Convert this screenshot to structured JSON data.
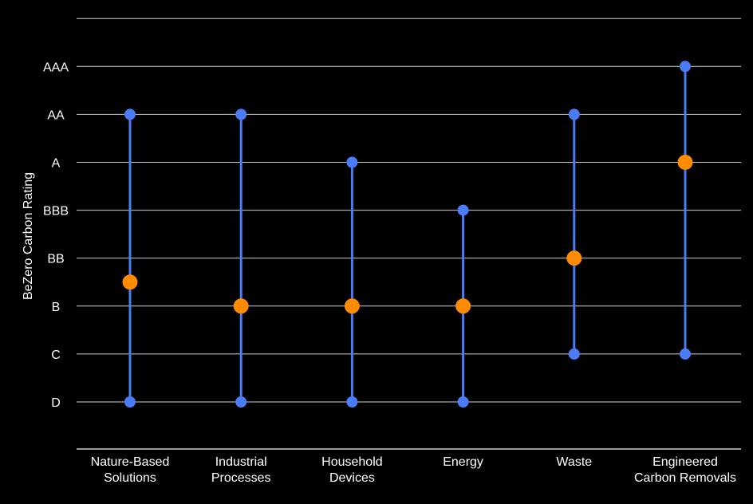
{
  "chart_data": {
    "type": "range-dot",
    "title": "",
    "xlabel": "",
    "ylabel": "BeZero Carbon Rating",
    "rating_levels": [
      "D",
      "C",
      "B",
      "BB",
      "BBB",
      "A",
      "AA",
      "AAA"
    ],
    "categories": [
      [
        "Nature-Based",
        "Solutions"
      ],
      [
        "Industrial",
        "Processes"
      ],
      [
        "Household",
        "Devices"
      ],
      [
        "Energy"
      ],
      [
        "Waste"
      ],
      [
        "Engineered",
        "Carbon Removals"
      ]
    ],
    "series": [
      {
        "name": "",
        "kind": "min",
        "values": [
          "D",
          "D",
          "D",
          "D",
          "C",
          "C"
        ]
      },
      {
        "name": "",
        "kind": "max",
        "values": [
          "AA",
          "AA",
          "A",
          "BBB",
          "AA",
          "AAA"
        ]
      },
      {
        "name": "",
        "kind": "average",
        "values": [
          "B-BB",
          "B",
          "B",
          "B",
          "BB",
          "A"
        ]
      }
    ],
    "average_numeric": [
      2.5,
      2,
      2,
      2,
      3,
      5
    ],
    "grid": true,
    "colors": {
      "range": "#4a7cf7",
      "average": "#ff8c00",
      "grid": "#cfcfcf",
      "text": "#ffffff",
      "background": "#000000"
    }
  }
}
